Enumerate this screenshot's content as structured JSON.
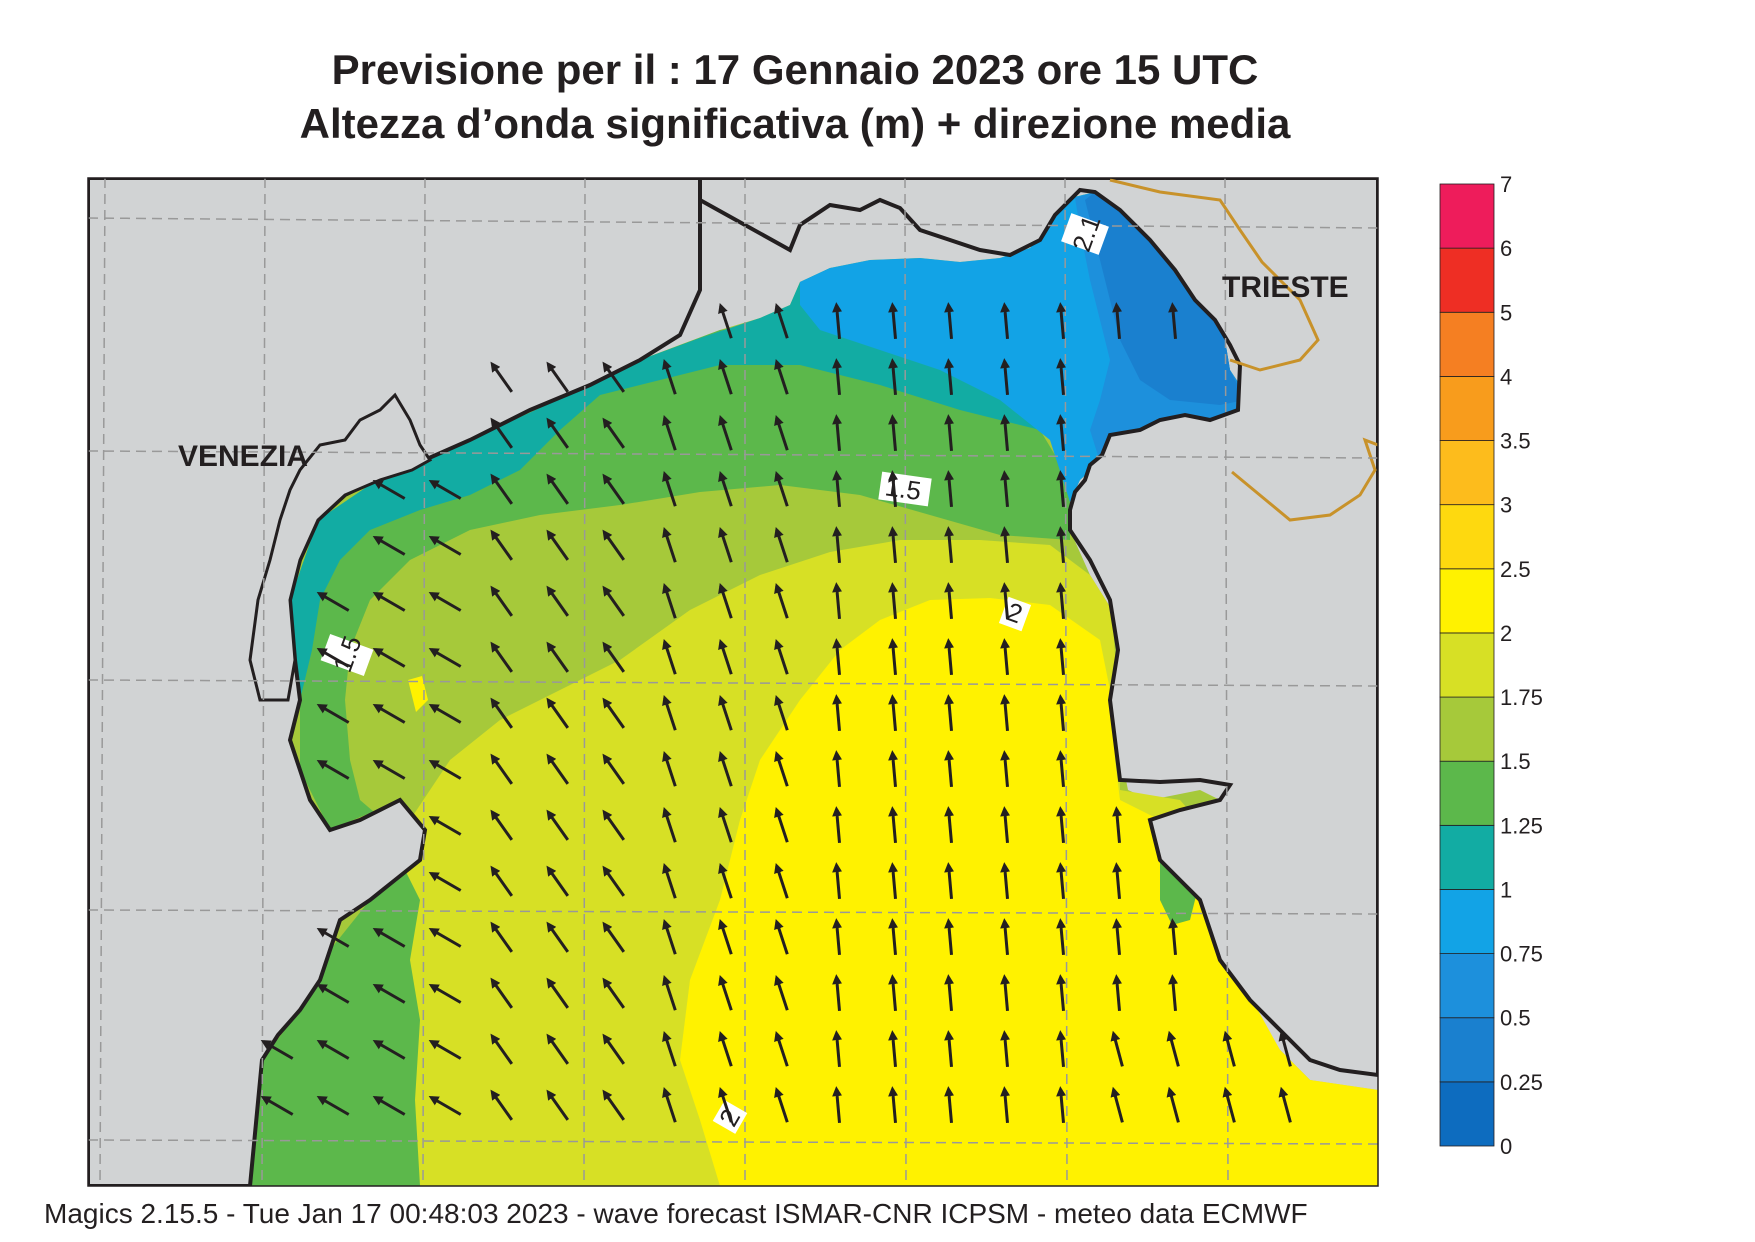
{
  "title": {
    "line1": "Previsione per il  :  17  Gennaio  2023   ore 15 UTC",
    "line2": "Altezza d’onda significativa (m) + direzione media"
  },
  "labels": {
    "venezia": "VENEZIA",
    "trieste": "TRIESTE"
  },
  "contour_labels": [
    "1.5",
    "1.5",
    "2",
    "2",
    "2.1"
  ],
  "legend": {
    "levels": [
      "0",
      "0.25",
      "0.5",
      "0.75",
      "1",
      "1.25",
      "1.5",
      "1.75",
      "2",
      "2.5",
      "3",
      "3.5",
      "4",
      "5",
      "6",
      "7"
    ],
    "colors": [
      "#0d6cbf",
      "#1a80cf",
      "#1d90dc",
      "#12a3e6",
      "#12aca3",
      "#5cb84b",
      "#a6c93a",
      "#d7e025",
      "#fff200",
      "#fed90f",
      "#fdbc1c",
      "#f89c1c",
      "#f57f22",
      "#ee2e24",
      "#ee1c5b"
    ]
  },
  "arrows": {
    "direction": "north-northwest"
  },
  "colors": {
    "land": "#d1d3d4",
    "coast": "#231f20",
    "border": "#c8922a",
    "grid": "#999999"
  },
  "footer": "Magics 2.15.5 - Tue Jan 17 00:48:03 2023 - wave forecast  ISMAR-CNR  ICPSM - meteo data    ECMWF"
}
